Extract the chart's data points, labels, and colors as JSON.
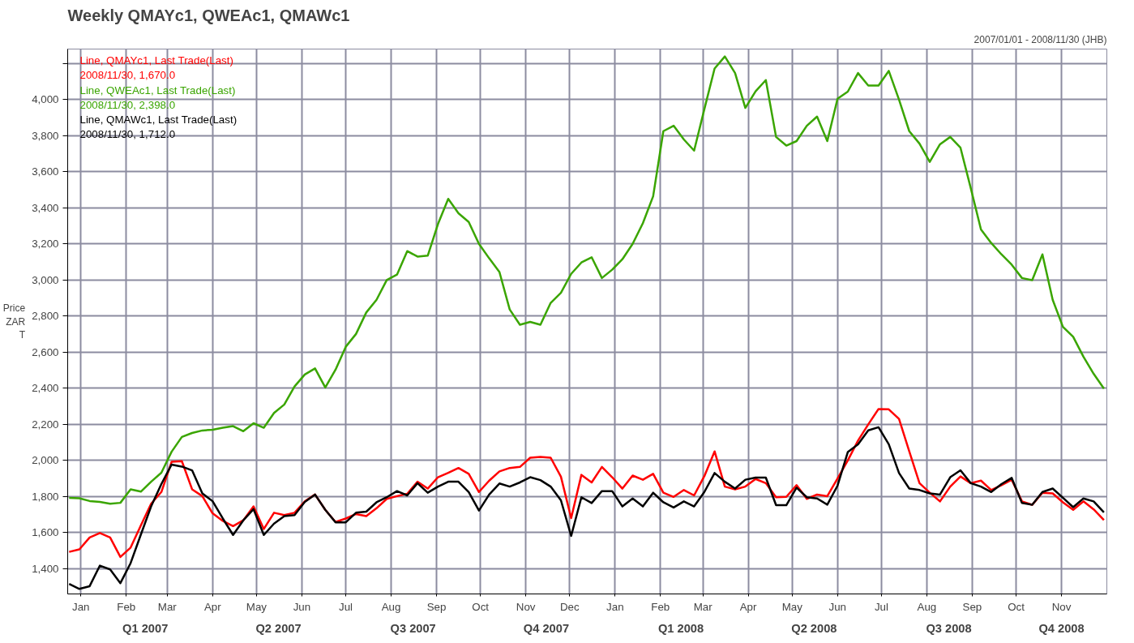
{
  "chart_data": {
    "type": "line",
    "title": "Weekly QMAYc1, QWEAc1, QMAWc1",
    "subtitle": "2007/01/01 - 2008/11/30 (JHB)",
    "ylabel": "Price ZAR T",
    "x": [
      "2006-12-24",
      "2006-12-31",
      "2007-01-07",
      "2007-01-14",
      "2007-01-21",
      "2007-01-28",
      "2007-02-04",
      "2007-02-11",
      "2007-02-18",
      "2007-02-25",
      "2007-03-04",
      "2007-03-11",
      "2007-03-18",
      "2007-03-25",
      "2007-04-01",
      "2007-04-08",
      "2007-04-15",
      "2007-04-22",
      "2007-04-29",
      "2007-05-06",
      "2007-05-13",
      "2007-05-20",
      "2007-05-27",
      "2007-06-03",
      "2007-06-10",
      "2007-06-17",
      "2007-06-24",
      "2007-07-01",
      "2007-07-08",
      "2007-07-15",
      "2007-07-22",
      "2007-07-29",
      "2007-08-05",
      "2007-08-12",
      "2007-08-19",
      "2007-08-26",
      "2007-09-02",
      "2007-09-09",
      "2007-09-16",
      "2007-09-23",
      "2007-09-30",
      "2007-10-07",
      "2007-10-14",
      "2007-10-21",
      "2007-10-28",
      "2007-11-04",
      "2007-11-11",
      "2007-11-18",
      "2007-11-25",
      "2007-12-02",
      "2007-12-09",
      "2007-12-16",
      "2007-12-23",
      "2007-12-30",
      "2008-01-06",
      "2008-01-13",
      "2008-01-20",
      "2008-01-27",
      "2008-02-03",
      "2008-02-10",
      "2008-02-17",
      "2008-02-24",
      "2008-03-02",
      "2008-03-09",
      "2008-03-16",
      "2008-03-23",
      "2008-03-30",
      "2008-04-06",
      "2008-04-13",
      "2008-04-20",
      "2008-04-27",
      "2008-05-04",
      "2008-05-11",
      "2008-05-18",
      "2008-05-25",
      "2008-06-01",
      "2008-06-08",
      "2008-06-15",
      "2008-06-22",
      "2008-06-29",
      "2008-07-06",
      "2008-07-13",
      "2008-07-20",
      "2008-07-27",
      "2008-08-03",
      "2008-08-10",
      "2008-08-17",
      "2008-08-24",
      "2008-08-31",
      "2008-09-07",
      "2008-09-14",
      "2008-09-21",
      "2008-09-28",
      "2008-10-05",
      "2008-10-12",
      "2008-10-19",
      "2008-10-26",
      "2008-11-02",
      "2008-11-09",
      "2008-11-16",
      "2008-11-23",
      "2008-11-30"
    ],
    "series": [
      {
        "name": "Line, QMAYc1, Last Trade(Last)",
        "color": "#ff0000",
        "values": [
          1493,
          1507,
          1573,
          1598,
          1573,
          1465,
          1517,
          1640,
          1760,
          1825,
          1992,
          1996,
          1840,
          1802,
          1707,
          1665,
          1636,
          1668,
          1745,
          1620,
          1710,
          1697,
          1710,
          1773,
          1811,
          1726,
          1659,
          1678,
          1703,
          1691,
          1735,
          1787,
          1802,
          1815,
          1882,
          1844,
          1907,
          1931,
          1958,
          1926,
          1825,
          1888,
          1939,
          1958,
          1964,
          2015,
          2020,
          2015,
          1910,
          1680,
          1920,
          1878,
          1964,
          1907,
          1844,
          1916,
          1893,
          1926,
          1821,
          1798,
          1836,
          1806,
          1913,
          2050,
          1855,
          1840,
          1855,
          1897,
          1874,
          1796,
          1798,
          1863,
          1787,
          1811,
          1802,
          1900,
          2000,
          2110,
          2200,
          2285,
          2283,
          2230,
          2050,
          1874,
          1821,
          1773,
          1855,
          1911,
          1874,
          1888,
          1836,
          1863,
          1893,
          1773,
          1754,
          1821,
          1817,
          1768,
          1726,
          1773,
          1729,
          1670
        ]
      },
      {
        "name": "Line, QWEAc1, Last Trade(Last)",
        "color": "#3aa500",
        "values": [
          1792,
          1790,
          1775,
          1770,
          1760,
          1765,
          1840,
          1827,
          1882,
          1932,
          2048,
          2130,
          2152,
          2166,
          2170,
          2181,
          2190,
          2162,
          2206,
          2181,
          2263,
          2310,
          2410,
          2476,
          2510,
          2404,
          2503,
          2630,
          2701,
          2820,
          2890,
          3000,
          3030,
          3160,
          3130,
          3135,
          3310,
          3450,
          3370,
          3322,
          3200,
          3120,
          3044,
          2837,
          2752,
          2768,
          2752,
          2873,
          2929,
          3034,
          3097,
          3126,
          3011,
          3057,
          3115,
          3200,
          3315,
          3464,
          3825,
          3855,
          3779,
          3717,
          3947,
          4172,
          4239,
          4147,
          3954,
          4046,
          4108,
          3793,
          3745,
          3770,
          3855,
          3906,
          3770,
          4005,
          4044,
          4147,
          4078,
          4078,
          4159,
          4000,
          3825,
          3756,
          3655,
          3752,
          3793,
          3733,
          3510,
          3280,
          3205,
          3142,
          3085,
          3011,
          2999,
          3142,
          2890,
          2740,
          2685,
          2575,
          2480,
          2398
        ]
      },
      {
        "name": "Line, QMAWc1, Last Trade(Last)",
        "color": "#000000",
        "values": [
          1316,
          1288,
          1303,
          1417,
          1396,
          1320,
          1431,
          1589,
          1745,
          1869,
          1977,
          1966,
          1945,
          1817,
          1774,
          1678,
          1587,
          1668,
          1730,
          1587,
          1650,
          1691,
          1697,
          1770,
          1811,
          1726,
          1657,
          1657,
          1710,
          1716,
          1768,
          1796,
          1830,
          1806,
          1874,
          1821,
          1855,
          1882,
          1882,
          1825,
          1722,
          1811,
          1872,
          1855,
          1878,
          1907,
          1891,
          1855,
          1779,
          1582,
          1796,
          1764,
          1830,
          1830,
          1745,
          1789,
          1745,
          1821,
          1768,
          1739,
          1773,
          1745,
          1825,
          1930,
          1882,
          1844,
          1893,
          1905,
          1905,
          1752,
          1752,
          1849,
          1796,
          1789,
          1755,
          1860,
          2046,
          2089,
          2167,
          2184,
          2090,
          1930,
          1844,
          1836,
          1817,
          1811,
          1907,
          1945,
          1874,
          1855,
          1825,
          1869,
          1903,
          1764,
          1754,
          1825,
          1844,
          1793,
          1741,
          1789,
          1773,
          1712
        ]
      }
    ],
    "annotations": [
      "2008/11/30, 1,670.0",
      "2008/11/30, 2,398.0",
      "2008/11/30, 1,712.0"
    ],
    "xlim": [
      "2006-12-23",
      "2008-12-02"
    ],
    "ylim": [
      1260,
      4280
    ],
    "xticks": [
      {
        "value": "2007-01-01",
        "label": "Jan"
      },
      {
        "value": "2007-02-01",
        "label": "Feb"
      },
      {
        "value": "2007-03-01",
        "label": "Mar"
      },
      {
        "value": "2007-04-01",
        "label": "Apr"
      },
      {
        "value": "2007-05-01",
        "label": "May"
      },
      {
        "value": "2007-06-01",
        "label": "Jun"
      },
      {
        "value": "2007-07-01",
        "label": "Jul"
      },
      {
        "value": "2007-08-01",
        "label": "Aug"
      },
      {
        "value": "2007-09-01",
        "label": "Sep"
      },
      {
        "value": "2007-10-01",
        "label": "Oct"
      },
      {
        "value": "2007-11-01",
        "label": "Nov"
      },
      {
        "value": "2007-12-01",
        "label": "Dec"
      },
      {
        "value": "2008-01-01",
        "label": "Jan"
      },
      {
        "value": "2008-02-01",
        "label": "Feb"
      },
      {
        "value": "2008-03-01",
        "label": "Mar"
      },
      {
        "value": "2008-04-01",
        "label": "Apr"
      },
      {
        "value": "2008-05-01",
        "label": "May"
      },
      {
        "value": "2008-06-01",
        "label": "Jun"
      },
      {
        "value": "2008-07-01",
        "label": "Jul"
      },
      {
        "value": "2008-08-01",
        "label": "Aug"
      },
      {
        "value": "2008-09-01",
        "label": "Sep"
      },
      {
        "value": "2008-10-01",
        "label": "Oct"
      },
      {
        "value": "2008-11-01",
        "label": "Nov"
      }
    ],
    "x2lim": [
      "2006-12-23",
      "2008-12-02"
    ],
    "x2ticks": [
      {
        "value": "2007-02-14",
        "label": "Q1 2007"
      },
      {
        "value": "2007-05-16",
        "label": "Q2 2007"
      },
      {
        "value": "2007-08-16",
        "label": "Q3 2007"
      },
      {
        "value": "2007-11-15",
        "label": "Q4 2007"
      },
      {
        "value": "2008-02-15",
        "label": "Q1 2008"
      },
      {
        "value": "2008-05-16",
        "label": "Q2 2008"
      },
      {
        "value": "2008-08-16",
        "label": "Q3 2008"
      },
      {
        "value": "2008-11-01",
        "label": "Q4 2008"
      }
    ],
    "yticks": [
      {
        "value": 1400,
        "label": "1,400"
      },
      {
        "value": 1600,
        "label": "1,600"
      },
      {
        "value": 1800,
        "label": "1,800"
      },
      {
        "value": 2000,
        "label": "2,000"
      },
      {
        "value": 2200,
        "label": "2,200"
      },
      {
        "value": 2400,
        "label": "2,400"
      },
      {
        "value": 2600,
        "label": "2,600"
      },
      {
        "value": 2800,
        "label": "2,800"
      },
      {
        "value": 3000,
        "label": "3,000"
      },
      {
        "value": 3200,
        "label": "3,200"
      },
      {
        "value": 3400,
        "label": "3,400"
      },
      {
        "value": 3600,
        "label": "3,600"
      },
      {
        "value": 3800,
        "label": "3,800"
      },
      {
        "value": 4000,
        "label": "4,000"
      },
      {
        "value": 4200,
        "label": null
      }
    ],
    "grid": true,
    "legend": "top left",
    "line_style": "solid",
    "marker": "none"
  }
}
